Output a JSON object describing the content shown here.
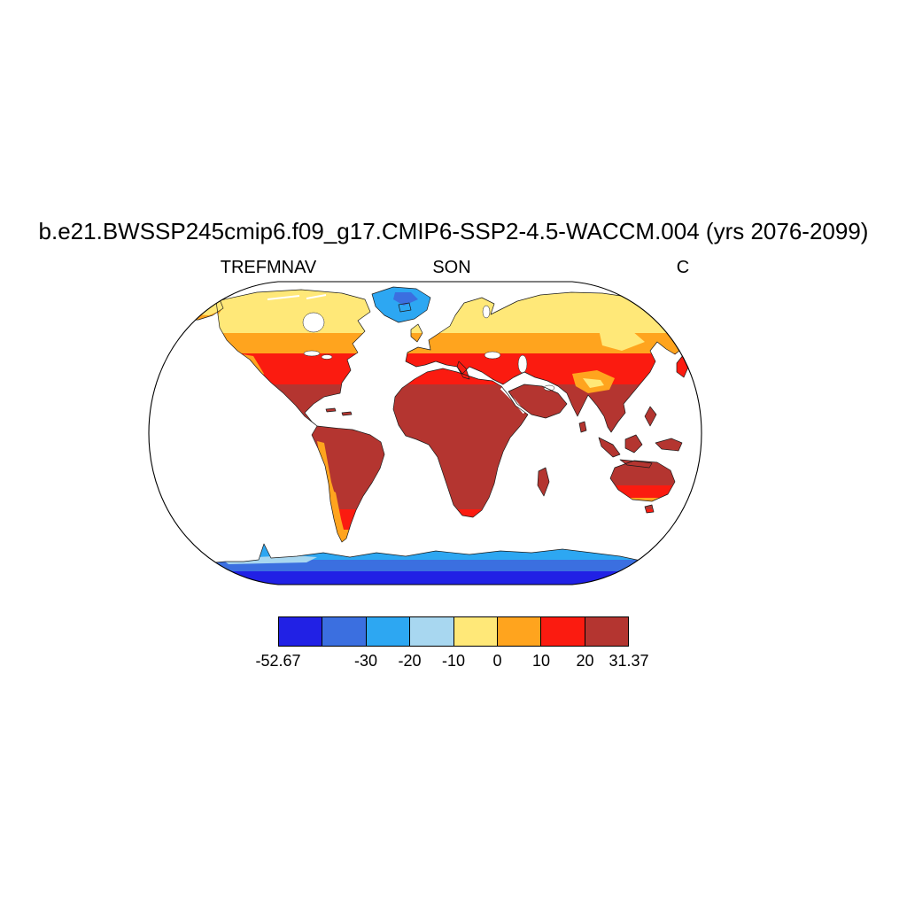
{
  "title": "b.e21.BWSSP245cmip6.f09_g17.CMIP6-SSP2-4.5-WACCM.004 (yrs 2076-2099)",
  "header": {
    "variable": "TREFMNAV",
    "season": "SON",
    "units": "C"
  },
  "colorbar": {
    "colors": [
      "#2121e5",
      "#3b6fe0",
      "#2da7f2",
      "#a8d7f0",
      "#ffe878",
      "#ffa41e",
      "#fb1b10",
      "#b43530"
    ],
    "ticks": [
      {
        "label": "-52.67",
        "edge": 0
      },
      {
        "label": "-30",
        "edge": 2
      },
      {
        "label": "-20",
        "edge": 3
      },
      {
        "label": "-10",
        "edge": 4
      },
      {
        "label": "0",
        "edge": 5
      },
      {
        "label": "10",
        "edge": 6
      },
      {
        "label": "20",
        "edge": 7
      },
      {
        "label": "31.37",
        "edge": 8
      }
    ]
  },
  "chart_data": {
    "type": "heatmap",
    "title": "b.e21.BWSSP245cmip6.f09_g17.CMIP6-SSP2-4.5-WACCM.004 (yrs 2076-2099)",
    "variable": "TREFMNAV",
    "season": "SON",
    "units": "C",
    "projection": "robinson",
    "data_min": -52.67,
    "data_max": 31.37,
    "levels": [
      -52.67,
      -40,
      -30,
      -20,
      -10,
      0,
      10,
      20,
      31.37
    ],
    "palette": [
      "#2121e5",
      "#3b6fe0",
      "#2da7f2",
      "#a8d7f0",
      "#ffe878",
      "#ffa41e",
      "#fb1b10",
      "#b43530"
    ],
    "legend_position": "bottom",
    "regions": [
      {
        "name": "tropics-and-subtropics",
        "approx_value_range": "20 to 31.37"
      },
      {
        "name": "midlatitudes",
        "approx_value_range": "10 to 20"
      },
      {
        "name": "northern-high-latitude-land",
        "approx_value_range": "-10 to 10"
      },
      {
        "name": "greenland",
        "approx_value_range": "-30 to -20"
      },
      {
        "name": "antarctica",
        "approx_value_range": "-52.67 to -20"
      }
    ]
  }
}
